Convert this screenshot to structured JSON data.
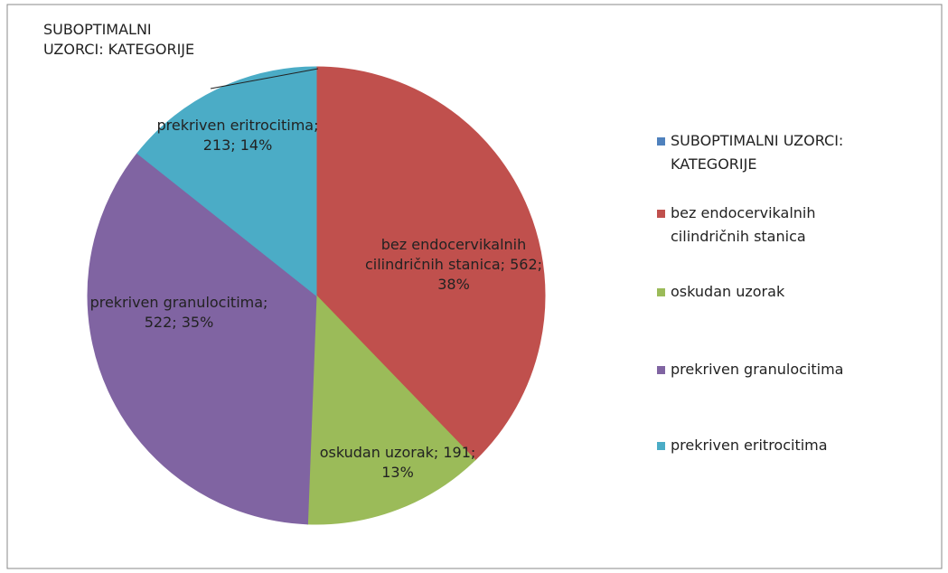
{
  "chart_data": {
    "type": "pie",
    "categories": [
      "SUBOPTIMALNI UZORCI: KATEGORIJE",
      "bez endocervikalnih cilindričnih stanica",
      "oskudan uzorak",
      "prekriven granulocitima",
      "prekriven eritrocitima"
    ],
    "values": [
      0,
      562,
      191,
      522,
      213
    ],
    "value_labels": [
      "SUBOPTIMALNI UZORCI: KATEGORIJE",
      "bez endocervikalnih cilindričnih stanica; 562; 38%",
      "oskudan uzorak; 191; 13%",
      "prekriven granulocitima; 522; 35%",
      "prekriven eritrocitima; 213; 14%"
    ],
    "colors": [
      "#4f81bd",
      "#c0504d",
      "#9bbb59",
      "#8064a2",
      "#4bacc6"
    ],
    "legend": "right"
  }
}
